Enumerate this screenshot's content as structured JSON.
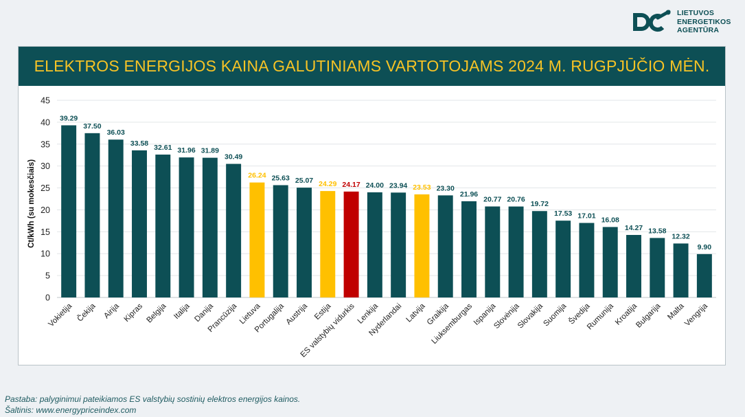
{
  "logo": {
    "icon": "lea-logo-icon",
    "lines": [
      "LIETUVOS",
      "ENERGETIKOS",
      "AGENTŪRA"
    ],
    "color": "#0d4f55"
  },
  "footnotes": {
    "note": "Pastaba: palyginimui pateikiamos ES valstybių sostinių elektros energijos kainos.",
    "source": "Šaltinis: www.energypriceindex.com"
  },
  "colors": {
    "default_bar": "#0d4f55",
    "highlight_bar": "#ffc000",
    "eu_average_bar": "#c00000",
    "default_label": "#0d4f55",
    "highlight_label": "#ffc000",
    "eu_average_label": "#c00000"
  },
  "chart_data": {
    "type": "bar",
    "title": "ELEKTROS ENERGIJOS KAINA GALUTINIAMS VARTOTOJAMS 2024 M. RUGPJŪČIO MĖN.",
    "ylabel": "Ct/kWh (su mokesčiais)",
    "xlabel": "",
    "ylim": [
      0,
      45
    ],
    "yticks": [
      0,
      5,
      10,
      15,
      20,
      25,
      30,
      35,
      40,
      45
    ],
    "grid": true,
    "legend": "none",
    "categories": [
      "Vokietija",
      "Čekija",
      "Airija",
      "Kipras",
      "Belgija",
      "Italija",
      "Danija",
      "Prancūzija",
      "Lietuva",
      "Portugalija",
      "Austrija",
      "Estija",
      "ES valstybių vidurkis",
      "Lenkija",
      "Nyderlandai",
      "Latvija",
      "Graikija",
      "Liuksemburgas",
      "Ispanija",
      "Slovėnija",
      "Slovakija",
      "Suomija",
      "Švedija",
      "Rumunija",
      "Kroatija",
      "Bulgarija",
      "Malta",
      "Vengrija"
    ],
    "values": [
      39.29,
      37.5,
      36.03,
      33.58,
      32.61,
      31.96,
      31.89,
      30.49,
      26.24,
      25.63,
      25.07,
      24.29,
      24.17,
      24.0,
      23.94,
      23.53,
      23.3,
      21.96,
      20.77,
      20.76,
      19.72,
      17.53,
      17.01,
      16.08,
      14.27,
      13.58,
      12.32,
      9.9
    ],
    "value_labels": [
      "39.29",
      "37.50",
      "36.03",
      "33.58",
      "32.61",
      "31.96",
      "31.89",
      "30.49",
      "26.24",
      "25.63",
      "25.07",
      "24.29",
      "24.17",
      "24.00",
      "23.94",
      "23.53",
      "23.30",
      "21.96",
      "20.77",
      "20.76",
      "19.72",
      "17.53",
      "17.01",
      "16.08",
      "14.27",
      "13.58",
      "12.32",
      "9.90"
    ],
    "highlighted": [
      "Lietuva",
      "Estija",
      "Latvija"
    ],
    "eu_average": "ES valstybių vidurkis"
  }
}
